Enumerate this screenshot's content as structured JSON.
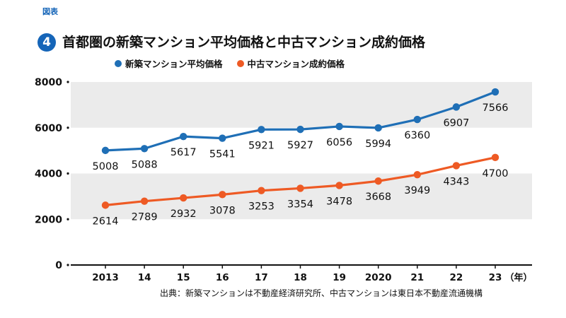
{
  "figure_label": "図表",
  "figure_number": "4",
  "title": "首都圏の新築マンション平均価格と中古マンション成約価格",
  "source": "出典：新築マンションは不動産経済研究所、中古マンションは東日本不動産流通機構",
  "colors": {
    "accent": "#1565b8",
    "new_series": "#1f6fb6",
    "used_series": "#ee5a24",
    "band": "#ebebeb"
  },
  "chart_data": {
    "type": "line",
    "categories": [
      "2013",
      "14",
      "15",
      "16",
      "17",
      "18",
      "19",
      "2020",
      "21",
      "22",
      "23"
    ],
    "x_unit_label": "（年）",
    "ylim": [
      0,
      8000
    ],
    "yticks": [
      0,
      2000,
      4000,
      6000,
      8000
    ],
    "grid": "alternating horizontal bands",
    "legend_position": "top",
    "series": [
      {
        "name": "新築マンション平均価格",
        "color": "#1f6fb6",
        "values": [
          5008,
          5088,
          5617,
          5541,
          5921,
          5927,
          6056,
          5994,
          6360,
          6907,
          7566
        ]
      },
      {
        "name": "中古マンション成約価格",
        "color": "#ee5a24",
        "values": [
          2614,
          2789,
          2932,
          3078,
          3253,
          3354,
          3478,
          3668,
          3949,
          4343,
          4700
        ]
      }
    ]
  }
}
